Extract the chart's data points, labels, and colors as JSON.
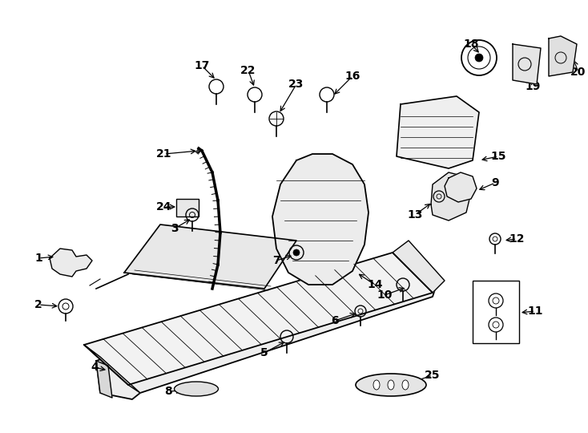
{
  "bg_color": "#ffffff",
  "line_color": "#000000",
  "lw": 1.0
}
